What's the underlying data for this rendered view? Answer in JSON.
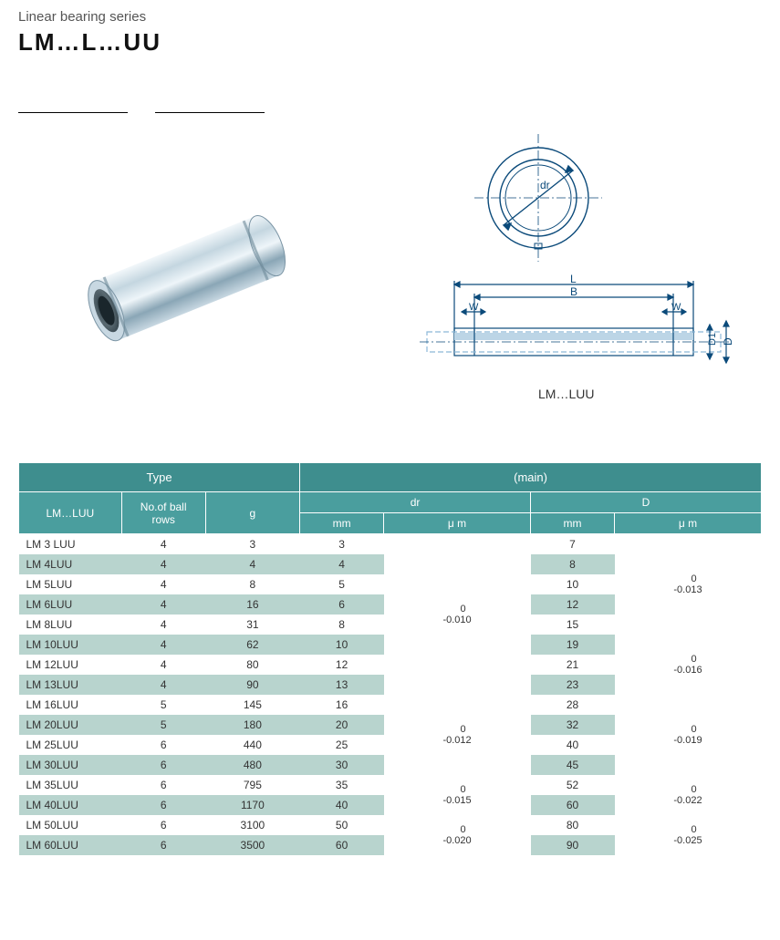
{
  "header": {
    "subtitle": "Linear bearing series",
    "title": "LM…L…UU"
  },
  "diagram": {
    "top_label": "dr",
    "dims": {
      "L": "L",
      "B": "B",
      "W": "W",
      "D": "D",
      "D1": "D1"
    },
    "caption": "LM…LUU",
    "colors": {
      "line": "#0b4a7a",
      "light": "#8cb8d8"
    }
  },
  "bearing": {
    "body_light": "#d8e4ea",
    "body_mid": "#9fb8c6",
    "body_dark": "#5a7888",
    "bore": "#5a6a72"
  },
  "table": {
    "header_bg_group": "#3e8e8e",
    "header_bg": "#4a9e9e",
    "row_alt_bg": "#b8d4ce",
    "groups": {
      "type": "Type",
      "main": "(main)"
    },
    "cols": {
      "lmluu": "LM…LUU",
      "rows": "No.of ball\nrows",
      "g": "g",
      "dr_mm": "mm",
      "dr_label": "dr",
      "dr_um": "μ m",
      "D_mm": "mm",
      "D_label": "D",
      "D_um": "μ m"
    },
    "rows": [
      {
        "type": "LM 3 LUU",
        "balls": 4,
        "g": 3,
        "dr": 3,
        "D": 7
      },
      {
        "type": "LM 4LUU",
        "balls": 4,
        "g": 4,
        "dr": 4,
        "D": 8
      },
      {
        "type": "LM 5LUU",
        "balls": 4,
        "g": 8,
        "dr": 5,
        "D": 10
      },
      {
        "type": "LM 6LUU",
        "balls": 4,
        "g": 16,
        "dr": 6,
        "D": 12
      },
      {
        "type": "LM 8LUU",
        "balls": 4,
        "g": 31,
        "dr": 8,
        "D": 15
      },
      {
        "type": "LM 10LUU",
        "balls": 4,
        "g": 62,
        "dr": 10,
        "D": 19
      },
      {
        "type": "LM 12LUU",
        "balls": 4,
        "g": 80,
        "dr": 12,
        "D": 21
      },
      {
        "type": "LM 13LUU",
        "balls": 4,
        "g": 90,
        "dr": 13,
        "D": 23
      },
      {
        "type": "LM 16LUU",
        "balls": 5,
        "g": 145,
        "dr": 16,
        "D": 28
      },
      {
        "type": "LM 20LUU",
        "balls": 5,
        "g": 180,
        "dr": 20,
        "D": 32
      },
      {
        "type": "LM 25LUU",
        "balls": 6,
        "g": 440,
        "dr": 25,
        "D": 40
      },
      {
        "type": "LM 30LUU",
        "balls": 6,
        "g": 480,
        "dr": 30,
        "D": 45
      },
      {
        "type": "LM 35LUU",
        "balls": 6,
        "g": 795,
        "dr": 35,
        "D": 52
      },
      {
        "type": "LM 40LUU",
        "balls": 6,
        "g": 1170,
        "dr": 40,
        "D": 60
      },
      {
        "type": "LM 50LUU",
        "balls": 6,
        "g": 3100,
        "dr": 50,
        "D": 80
      },
      {
        "type": "LM 60LUU",
        "balls": 6,
        "g": 3500,
        "dr": 60,
        "D": 90
      }
    ],
    "dr_tolerances": [
      {
        "start": 0,
        "span": 8,
        "upper": "0",
        "lower": "-0.010"
      },
      {
        "start": 8,
        "span": 4,
        "upper": "0",
        "lower": "-0.012"
      },
      {
        "start": 12,
        "span": 2,
        "upper": "0",
        "lower": "-0.015"
      },
      {
        "start": 14,
        "span": 2,
        "upper": "0",
        "lower": "-0.020"
      }
    ],
    "D_tolerances": [
      {
        "start": 0,
        "span": 5,
        "upper": "0",
        "lower": "-0.013"
      },
      {
        "start": 5,
        "span": 3,
        "upper": "0",
        "lower": "-0.016"
      },
      {
        "start": 8,
        "span": 4,
        "upper": "0",
        "lower": "-0.019"
      },
      {
        "start": 12,
        "span": 2,
        "upper": "0",
        "lower": "-0.022"
      },
      {
        "start": 14,
        "span": 2,
        "upper": "0",
        "lower": "-0.025"
      }
    ]
  }
}
